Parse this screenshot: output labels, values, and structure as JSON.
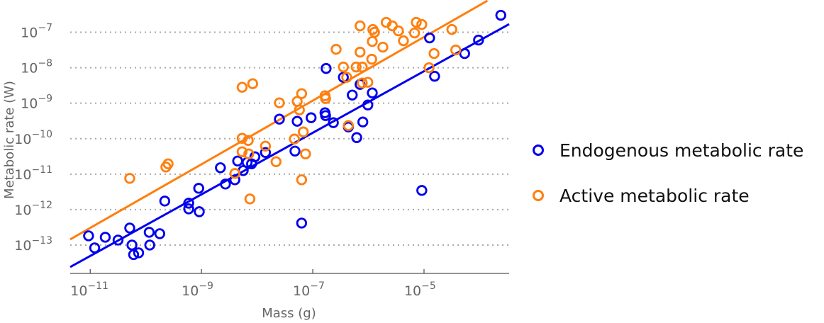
{
  "chart_data": {
    "type": "scatter",
    "title": "",
    "xlabel": "Mass (g)",
    "ylabel": "Metabolic rate (W)",
    "xscale": "log",
    "yscale": "log",
    "xlim_log10": [
      -11.36,
      -3.47
    ],
    "ylim_log10": [
      -13.8,
      -6.15
    ],
    "x_ticks_log10": [
      -11,
      -9,
      -7,
      -5
    ],
    "y_ticks_log10": [
      -13,
      -12,
      -11,
      -10,
      -9,
      -8,
      -7
    ],
    "tick_base": "10",
    "grid": "horizontal-dotted",
    "legend_position": "right-outside",
    "series": [
      {
        "name": "Endogenous metabolic rate",
        "color": "#0000ee",
        "marker": "open-circle",
        "points_log10": [
          [
            -11.03,
            -12.74
          ],
          [
            -10.92,
            -13.08
          ],
          [
            -10.73,
            -12.78
          ],
          [
            -10.5,
            -12.86
          ],
          [
            -10.29,
            -12.52
          ],
          [
            -10.25,
            -13.0
          ],
          [
            -10.22,
            -13.27
          ],
          [
            -10.13,
            -13.22
          ],
          [
            -9.94,
            -12.64
          ],
          [
            -9.93,
            -13.0
          ],
          [
            -9.75,
            -12.68
          ],
          [
            -9.66,
            -11.76
          ],
          [
            -9.23,
            -11.82
          ],
          [
            -9.23,
            -11.98
          ],
          [
            -9.05,
            -11.4
          ],
          [
            -9.04,
            -12.06
          ],
          [
            -8.66,
            -10.82
          ],
          [
            -8.57,
            -11.28
          ],
          [
            -8.4,
            -11.16
          ],
          [
            -8.35,
            -10.63
          ],
          [
            -8.25,
            -10.9
          ],
          [
            -8.18,
            -10.67
          ],
          [
            -8.1,
            -10.71
          ],
          [
            -8.04,
            -10.51
          ],
          [
            -7.85,
            -10.39
          ],
          [
            -7.6,
            -9.45
          ],
          [
            -7.32,
            -10.35
          ],
          [
            -7.28,
            -9.51
          ],
          [
            -7.2,
            -12.38
          ],
          [
            -7.03,
            -9.41
          ],
          [
            -6.78,
            -9.27
          ],
          [
            -6.77,
            -9.35
          ],
          [
            -6.76,
            -8.02
          ],
          [
            -6.63,
            -9.55
          ],
          [
            -6.45,
            -8.27
          ],
          [
            -6.36,
            -9.67
          ],
          [
            -6.29,
            -8.77
          ],
          [
            -6.21,
            -9.97
          ],
          [
            -6.15,
            -8.47
          ],
          [
            -6.1,
            -9.53
          ],
          [
            -6.01,
            -9.05
          ],
          [
            -5.93,
            -8.71
          ],
          [
            -5.04,
            -11.46
          ],
          [
            -4.9,
            -7.16
          ],
          [
            -4.81,
            -8.24
          ],
          [
            -4.27,
            -7.6
          ],
          [
            -4.02,
            -7.22
          ],
          [
            -3.62,
            -6.52
          ]
        ],
        "fit_line_log10": [
          [
            -11.36,
            -13.62
          ],
          [
            -3.47,
            -6.77
          ]
        ]
      },
      {
        "name": "Active metabolic rate",
        "color": "#ff7f0e",
        "marker": "open-circle",
        "points_log10": [
          [
            -10.29,
            -11.12
          ],
          [
            -9.64,
            -10.8
          ],
          [
            -9.6,
            -10.71
          ],
          [
            -8.4,
            -10.98
          ],
          [
            -8.27,
            -8.55
          ],
          [
            -8.27,
            -9.99
          ],
          [
            -8.27,
            -10.37
          ],
          [
            -8.16,
            -10.05
          ],
          [
            -8.15,
            -10.43
          ],
          [
            -8.13,
            -11.7
          ],
          [
            -8.08,
            -8.45
          ],
          [
            -7.85,
            -10.21
          ],
          [
            -7.66,
            -10.65
          ],
          [
            -7.6,
            -8.99
          ],
          [
            -7.33,
            -10.01
          ],
          [
            -7.28,
            -8.95
          ],
          [
            -7.24,
            -9.19
          ],
          [
            -7.2,
            -8.73
          ],
          [
            -7.2,
            -11.16
          ],
          [
            -7.17,
            -9.81
          ],
          [
            -7.13,
            -10.43
          ],
          [
            -6.78,
            -8.79
          ],
          [
            -6.77,
            -8.87
          ],
          [
            -6.58,
            -7.48
          ],
          [
            -6.45,
            -7.98
          ],
          [
            -6.39,
            -8.27
          ],
          [
            -6.36,
            -9.63
          ],
          [
            -6.22,
            -7.98
          ],
          [
            -6.15,
            -6.82
          ],
          [
            -6.15,
            -7.56
          ],
          [
            -6.11,
            -7.98
          ],
          [
            -6.11,
            -8.43
          ],
          [
            -6.01,
            -8.41
          ],
          [
            -5.94,
            -7.76
          ],
          [
            -5.92,
            -6.92
          ],
          [
            -5.89,
            -7.0
          ],
          [
            -5.93,
            -7.26
          ],
          [
            -5.74,
            -7.42
          ],
          [
            -5.68,
            -6.72
          ],
          [
            -5.57,
            -6.82
          ],
          [
            -5.46,
            -6.96
          ],
          [
            -5.37,
            -7.24
          ],
          [
            -5.17,
            -7.02
          ],
          [
            -5.14,
            -6.72
          ],
          [
            -5.04,
            -6.78
          ],
          [
            -4.91,
            -8.0
          ],
          [
            -4.82,
            -7.6
          ],
          [
            -4.5,
            -6.92
          ],
          [
            -4.43,
            -7.5
          ]
        ],
        "fit_line_log10": [
          [
            -11.36,
            -12.84
          ],
          [
            -3.86,
            -6.11
          ]
        ]
      }
    ]
  },
  "legend": {
    "items": [
      {
        "label": "Endogenous metabolic rate",
        "color": "#0000ee"
      },
      {
        "label": "Active metabolic rate",
        "color": "#ff7f0e"
      }
    ]
  }
}
